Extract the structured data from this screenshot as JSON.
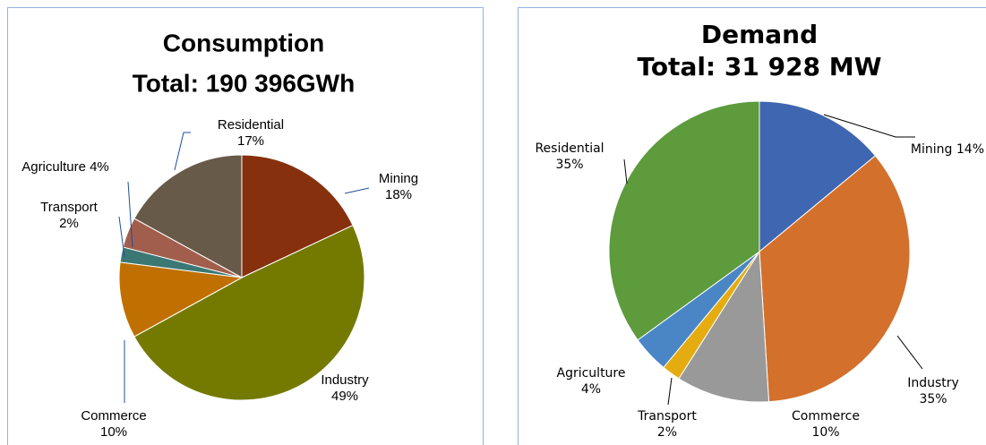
{
  "chart_data": [
    {
      "type": "pie",
      "title": "Consumption",
      "subtitle": "Total: 190 396GWh",
      "categories": [
        "Mining",
        "Industry",
        "Commerce",
        "Transport",
        "Agriculture",
        "Residential"
      ],
      "values": [
        18,
        49,
        10,
        2,
        4,
        17
      ],
      "value_labels": [
        "18%",
        "49%",
        "10%",
        "2%",
        "4%",
        "17%"
      ],
      "colors": [
        "#86300d",
        "#747a00",
        "#bf7000",
        "#3b7874",
        "#a25e4d",
        "#685a48"
      ]
    },
    {
      "type": "pie",
      "title": "Demand",
      "subtitle": "Total: 31 928 MW",
      "categories": [
        "Mining",
        "Industry",
        "Commerce",
        "Transport",
        "Agriculture",
        "Residential"
      ],
      "values": [
        14,
        35,
        10,
        2,
        4,
        35
      ],
      "value_labels": [
        "14%",
        "35%",
        "10%",
        "2%",
        "4%",
        "35%"
      ],
      "colors": [
        "#3f66b0",
        "#d3702b",
        "#999999",
        "#e4ac10",
        "#4a86c6",
        "#5d9b3d"
      ]
    }
  ]
}
